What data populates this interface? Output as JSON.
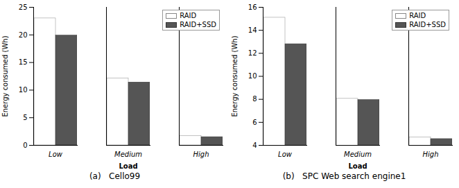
{
  "chart_data": [
    {
      "type": "bar",
      "title": "(a)   Cello99",
      "categories": [
        "Low",
        "Medium",
        "High"
      ],
      "series": [
        {
          "name": "RAID",
          "color": "white",
          "values": [
            23.0,
            12.1,
            1.7
          ]
        },
        {
          "name": "RAID+SSD",
          "color": "#555555",
          "values": [
            19.9,
            11.4,
            1.5
          ]
        }
      ],
      "xlabel": "Load",
      "ylabel": "Energy consumed (Wh)",
      "ylim": [
        0,
        25
      ],
      "yticks": [
        0,
        5,
        10,
        15,
        20,
        25
      ],
      "legend": "upper right"
    },
    {
      "type": "bar",
      "title": "(b)   SPC Web search engine1",
      "categories": [
        "Low",
        "Medium",
        "High"
      ],
      "series": [
        {
          "name": "RAID",
          "color": "white",
          "values": [
            15.1,
            8.05,
            4.7
          ]
        },
        {
          "name": "RAID+SSD",
          "color": "#555555",
          "values": [
            12.8,
            7.95,
            4.55
          ]
        }
      ],
      "xlabel": "Load",
      "ylabel": "Energy consumed (Wh)",
      "ylim": [
        4,
        16
      ],
      "yticks": [
        4,
        6,
        8,
        10,
        12,
        14,
        16
      ],
      "legend": "upper right"
    }
  ]
}
